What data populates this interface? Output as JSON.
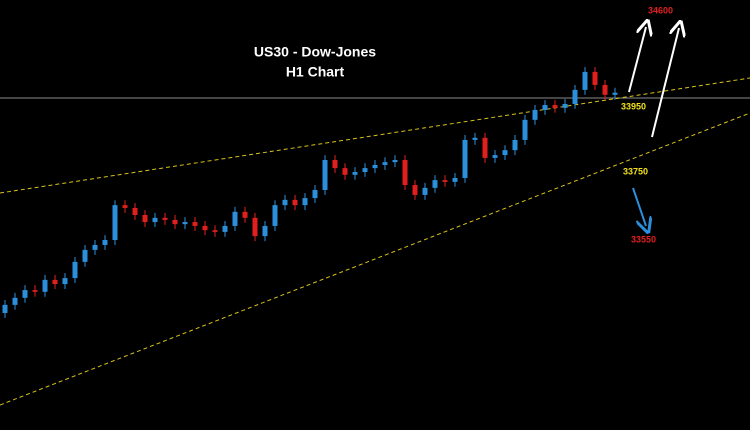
{
  "chart_data": {
    "type": "candlestick",
    "title": "US30 - Dow-Jones",
    "subtitle": "H1 Chart",
    "up_color": "#2b8fdc",
    "down_color": "#e0201e",
    "ylim": [
      33008,
      34228
    ],
    "annotations": [
      34600,
      33950,
      33750,
      33550
    ],
    "open": [
      33340,
      33363,
      33383,
      33405,
      33400,
      33434,
      33422,
      33439,
      33485,
      33519,
      33533,
      33547,
      33646,
      33638,
      33618,
      33598,
      33610,
      33604,
      33592,
      33598,
      33587,
      33575,
      33570,
      33587,
      33627,
      33610,
      33558,
      33587,
      33646,
      33661,
      33646,
      33666,
      33689,
      33774,
      33751,
      33732,
      33740,
      33751,
      33760,
      33768,
      33774,
      33703,
      33675,
      33695,
      33717,
      33712,
      33723,
      33831,
      33837,
      33780,
      33788,
      33802,
      33831,
      33888,
      33916,
      33930,
      33922,
      33933,
      33973,
      34024,
      33987,
      33959
    ],
    "high": [
      33377,
      33397,
      33419,
      33419,
      33448,
      33448,
      33453,
      33499,
      33533,
      33547,
      33561,
      33660,
      33660,
      33652,
      33632,
      33624,
      33624,
      33618,
      33612,
      33612,
      33601,
      33589,
      33601,
      33641,
      33641,
      33624,
      33601,
      33660,
      33675,
      33675,
      33680,
      33703,
      33788,
      33788,
      33765,
      33754,
      33765,
      33774,
      33782,
      33788,
      33788,
      33717,
      33709,
      33731,
      33731,
      33737,
      33845,
      33851,
      33851,
      33802,
      33816,
      33845,
      33902,
      33930,
      33944,
      33944,
      33947,
      33987,
      34038,
      34038,
      34001,
      33979
    ],
    "low": [
      33326,
      33349,
      33369,
      33386,
      33386,
      33408,
      33408,
      33425,
      33471,
      33505,
      33519,
      33533,
      33624,
      33604,
      33584,
      33584,
      33590,
      33578,
      33578,
      33573,
      33561,
      33556,
      33556,
      33573,
      33596,
      33544,
      33544,
      33573,
      33632,
      33632,
      33632,
      33652,
      33675,
      33737,
      33718,
      33718,
      33726,
      33737,
      33746,
      33754,
      33689,
      33661,
      33661,
      33681,
      33698,
      33698,
      33709,
      33817,
      33766,
      33766,
      33774,
      33788,
      33817,
      33874,
      33902,
      33908,
      33908,
      33919,
      33959,
      33973,
      33945,
      33945
    ],
    "close": [
      33363,
      33383,
      33405,
      33400,
      33434,
      33422,
      33439,
      33485,
      33519,
      33533,
      33547,
      33646,
      33638,
      33618,
      33598,
      33610,
      33604,
      33592,
      33598,
      33587,
      33575,
      33570,
      33587,
      33627,
      33610,
      33558,
      33587,
      33646,
      33661,
      33646,
      33666,
      33689,
      33774,
      33751,
      33732,
      33740,
      33751,
      33760,
      33768,
      33774,
      33703,
      33675,
      33695,
      33717,
      33712,
      33723,
      33831,
      33837,
      33780,
      33788,
      33802,
      33831,
      33888,
      33916,
      33930,
      33922,
      33933,
      33973,
      34024,
      33987,
      33959,
      33965
    ]
  }
}
